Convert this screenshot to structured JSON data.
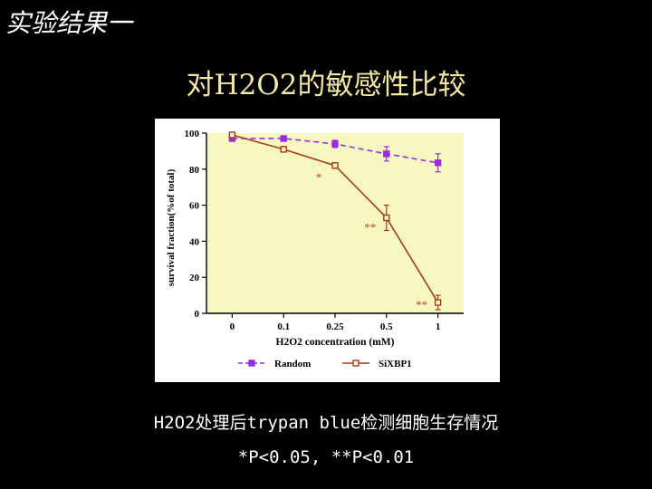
{
  "slide": {
    "title": "实验结果一",
    "heading": "对H2O2的敏感性比较",
    "caption_line1": "H2O2处理后trypan blue检测细胞生存情况",
    "caption_line2": "*P<0.05, **P<0.01"
  },
  "colors": {
    "background": "#000000",
    "plot_area": "#f7f7c0",
    "random_series": "#9a2be0",
    "sixbp1_series": "#a83a1e",
    "significance_marks": "#b8451f",
    "heading_text": "#f2e6a0"
  },
  "chart_data": {
    "type": "line",
    "xlabel": "H2O2 concentration (mM)",
    "ylabel": "survival fraction(%of total)",
    "categories": [
      "0",
      "0.1",
      "0.25",
      "0.5",
      "1"
    ],
    "ylim": [
      0,
      100
    ],
    "yticks": [
      "0",
      "20",
      "40",
      "60",
      "80",
      "100"
    ],
    "grid": false,
    "legend_position": "bottom",
    "series": [
      {
        "name": "Random",
        "values": [
          97,
          97,
          94,
          88.5,
          83.5
        ],
        "errors": [
          1.5,
          1,
          2,
          4,
          5
        ],
        "color": "#9a2be0",
        "line_style": "dashed",
        "marker": "filled-square"
      },
      {
        "name": "SiXBP1",
        "values": [
          99,
          91,
          82,
          53,
          6
        ],
        "errors": [
          1,
          1.5,
          1.5,
          7,
          4
        ],
        "color": "#a83a1e",
        "line_style": "solid",
        "marker": "open-square"
      }
    ],
    "annotations": [
      {
        "text": "*",
        "category": "0.25",
        "y": 76
      },
      {
        "text": "**",
        "category": "0.5",
        "y": 48
      },
      {
        "text": "**",
        "category": "1",
        "y": 5
      }
    ]
  }
}
